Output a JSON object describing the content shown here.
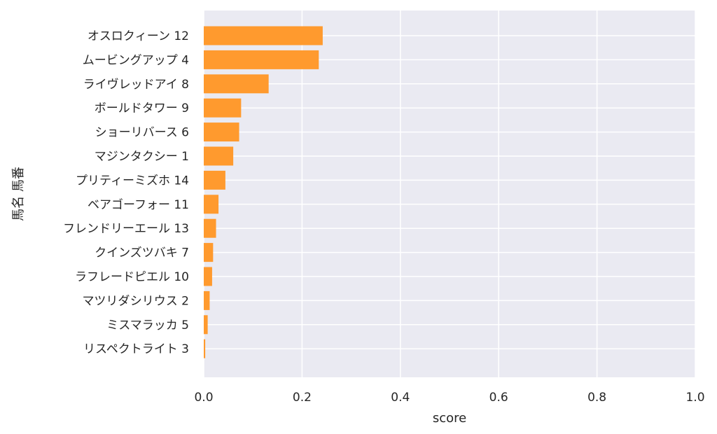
{
  "chart_data": {
    "type": "bar",
    "orientation": "horizontal",
    "xlabel": "score",
    "ylabel": "馬名 馬番",
    "xlim": [
      0,
      1
    ],
    "xticks": [
      "0.0",
      "0.2",
      "0.4",
      "0.6",
      "0.8",
      "1.0"
    ],
    "grid": true,
    "bar_color": "#ff9a2e",
    "background_color": "#eaeaf2",
    "categories": [
      "オスロクィーン 12",
      "ムービングアップ 4",
      "ライヴレッドアイ 8",
      "ボールドタワー 9",
      "ショーリバース 6",
      "マジンタクシー 1",
      "プリティーミズホ 14",
      "ベアゴーフォー 11",
      "フレンドリーエール 13",
      "クインズツバキ 7",
      "ラフレードピエル 10",
      "マツリダシリウス 2",
      "ミスマラッカ 5",
      "リスペクトライト 3"
    ],
    "values": [
      0.242,
      0.234,
      0.132,
      0.076,
      0.072,
      0.06,
      0.044,
      0.03,
      0.025,
      0.019,
      0.017,
      0.012,
      0.008,
      0.003
    ]
  }
}
